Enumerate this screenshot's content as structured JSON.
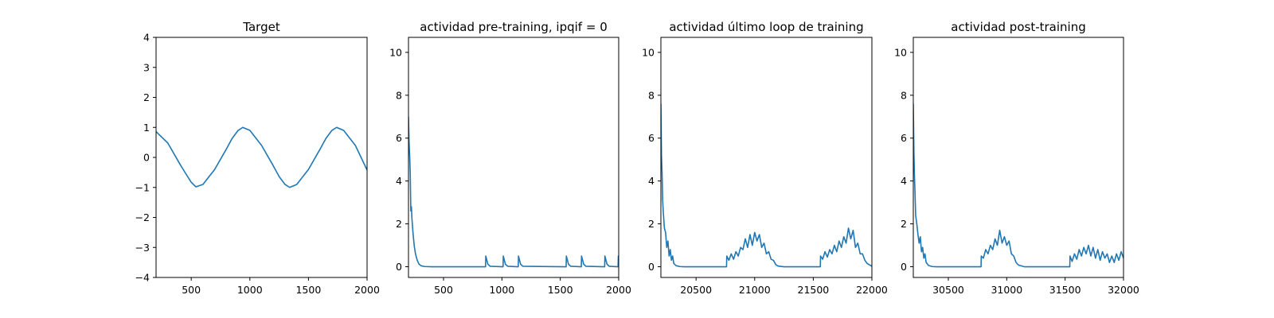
{
  "figure": {
    "line_color": "#1f77b4"
  },
  "chart_data": [
    {
      "type": "line",
      "title": "Target",
      "xlim": [
        200,
        2000
      ],
      "ylim": [
        -4,
        4
      ],
      "xticks": [
        500,
        1000,
        1500,
        2000
      ],
      "xtick_labels": [
        "500",
        "1000",
        "1500",
        "2000"
      ],
      "yticks": [
        -4,
        -3,
        -2,
        -1,
        0,
        1,
        2,
        3,
        4
      ],
      "ytick_labels": [
        "−4",
        "−3",
        "−2",
        "−1",
        "0",
        "1",
        "2",
        "3",
        "4"
      ],
      "series": [
        {
          "x": [
            200,
            300,
            400,
            450,
            500,
            540,
            600,
            700,
            800,
            850,
            900,
            940,
            1000,
            1100,
            1200,
            1250,
            1300,
            1340,
            1400,
            1500,
            1600,
            1650,
            1700,
            1740,
            1800,
            1900,
            2000
          ],
          "y": [
            0.86,
            0.48,
            -0.2,
            -0.52,
            -0.83,
            -0.98,
            -0.9,
            -0.4,
            0.28,
            0.64,
            0.9,
            1.0,
            0.9,
            0.4,
            -0.28,
            -0.64,
            -0.9,
            -1.0,
            -0.9,
            -0.4,
            0.28,
            0.64,
            0.9,
            1.0,
            0.9,
            0.4,
            -0.42
          ]
        }
      ],
      "grid": false
    },
    {
      "type": "line",
      "title": "actividad pre-training, ipqif = 0",
      "xlim": [
        200,
        2000
      ],
      "ylim": [
        -0.5,
        10.7
      ],
      "xticks": [
        500,
        1000,
        1500,
        2000
      ],
      "xtick_labels": [
        "500",
        "1000",
        "1500",
        "2000"
      ],
      "yticks": [
        0,
        2,
        4,
        6,
        8,
        10
      ],
      "ytick_labels": [
        "0",
        "2",
        "4",
        "6",
        "8",
        "10"
      ],
      "series": [
        {
          "x": [
            200,
            205,
            210,
            215,
            220,
            225,
            230,
            240,
            250,
            260,
            275,
            290,
            310,
            340,
            400,
            860,
            862,
            880,
            900,
            1010,
            1012,
            1030,
            1050,
            1140,
            1142,
            1160,
            1180,
            1550,
            1552,
            1570,
            1590,
            1680,
            1682,
            1700,
            1720,
            1880,
            1882,
            1900,
            1920,
            1995,
            1997,
            2000
          ],
          "y": [
            7.0,
            5.8,
            5.2,
            4.4,
            2.6,
            2.8,
            2.2,
            1.5,
            0.95,
            0.6,
            0.3,
            0.12,
            0.04,
            0.01,
            0.0,
            0.0,
            0.5,
            0.12,
            0.02,
            0.0,
            0.5,
            0.12,
            0.02,
            0.0,
            0.5,
            0.12,
            0.02,
            0.0,
            0.5,
            0.12,
            0.02,
            0.0,
            0.5,
            0.12,
            0.02,
            0.0,
            0.5,
            0.12,
            0.02,
            0.0,
            0.5,
            0.5
          ]
        }
      ],
      "grid": false
    },
    {
      "type": "line",
      "title": "actividad último loop de training",
      "xlim": [
        20200,
        22000
      ],
      "ylim": [
        -0.5,
        10.7
      ],
      "xticks": [
        20500,
        21000,
        21500,
        22000
      ],
      "xtick_labels": [
        "20500",
        "21000",
        "21500",
        "22000"
      ],
      "yticks": [
        0,
        2,
        4,
        6,
        8,
        10
      ],
      "ytick_labels": [
        "0",
        "2",
        "4",
        "6",
        "8",
        "10"
      ],
      "series": [
        {
          "x": [
            20200,
            20205,
            20210,
            20215,
            20220,
            20230,
            20240,
            20250,
            20260,
            20270,
            20280,
            20290,
            20300,
            20310,
            20330,
            20360,
            20400,
            20760,
            20762,
            20780,
            20800,
            20820,
            20840,
            20860,
            20880,
            20900,
            20920,
            20940,
            20960,
            20980,
            21000,
            21020,
            21040,
            21060,
            21080,
            21100,
            21120,
            21140,
            21160,
            21180,
            21200,
            21250,
            21560,
            21562,
            21580,
            21600,
            21620,
            21640,
            21660,
            21680,
            21700,
            21720,
            21740,
            21760,
            21780,
            21800,
            21820,
            21840,
            21860,
            21880,
            21900,
            21920,
            21940,
            21960,
            22000
          ],
          "y": [
            7.6,
            5.2,
            4.4,
            3.1,
            2.6,
            1.8,
            1.6,
            0.9,
            1.2,
            0.5,
            0.8,
            0.3,
            0.5,
            0.15,
            0.05,
            0.01,
            0.0,
            0.0,
            0.5,
            0.3,
            0.6,
            0.35,
            0.7,
            0.5,
            0.9,
            0.8,
            1.3,
            0.9,
            1.5,
            1.0,
            1.6,
            1.2,
            1.5,
            0.9,
            1.1,
            0.6,
            0.7,
            0.35,
            0.3,
            0.1,
            0.03,
            0.0,
            0.0,
            0.5,
            0.35,
            0.7,
            0.45,
            0.8,
            0.6,
            1.0,
            0.7,
            1.2,
            0.9,
            1.4,
            1.1,
            1.8,
            1.3,
            1.7,
            0.9,
            1.1,
            0.6,
            0.6,
            0.3,
            0.15,
            0.02
          ]
        }
      ],
      "grid": false
    },
    {
      "type": "line",
      "title": "actividad post-training",
      "xlim": [
        30200,
        32000
      ],
      "ylim": [
        -0.5,
        10.7
      ],
      "xticks": [
        30500,
        31000,
        31500,
        32000
      ],
      "xtick_labels": [
        "30500",
        "31000",
        "31500",
        "32000"
      ],
      "yticks": [
        0,
        2,
        4,
        6,
        8,
        10
      ],
      "ytick_labels": [
        "0",
        "2",
        "4",
        "6",
        "8",
        "10"
      ],
      "series": [
        {
          "x": [
            30200,
            30205,
            30210,
            30215,
            30220,
            30230,
            30240,
            30250,
            30260,
            30270,
            30280,
            30290,
            30300,
            30310,
            30330,
            30360,
            30400,
            30780,
            30782,
            30800,
            30820,
            30840,
            30860,
            30880,
            30900,
            30920,
            30940,
            30960,
            30980,
            31000,
            31020,
            31040,
            31060,
            31080,
            31100,
            31150,
            31540,
            31542,
            31560,
            31580,
            31600,
            31620,
            31640,
            31660,
            31680,
            31700,
            31720,
            31740,
            31760,
            31780,
            31800,
            31820,
            31840,
            31860,
            31880,
            31900,
            31920,
            31940,
            31960,
            31980,
            32000
          ],
          "y": [
            7.6,
            5.4,
            4.2,
            3.4,
            2.4,
            2.0,
            1.5,
            1.1,
            1.4,
            0.7,
            0.9,
            0.4,
            0.6,
            0.2,
            0.06,
            0.01,
            0.0,
            0.0,
            0.5,
            0.4,
            0.8,
            0.6,
            1.0,
            0.8,
            1.3,
            1.0,
            1.7,
            1.1,
            1.4,
            1.0,
            1.2,
            0.6,
            0.5,
            0.2,
            0.08,
            0.0,
            0.0,
            0.5,
            0.25,
            0.6,
            0.35,
            0.8,
            0.5,
            0.9,
            0.6,
            1.0,
            0.5,
            0.9,
            0.4,
            0.8,
            0.3,
            0.7,
            0.4,
            0.6,
            0.2,
            0.5,
            0.2,
            0.6,
            0.3,
            0.7,
            0.4
          ]
        }
      ],
      "grid": false
    }
  ]
}
